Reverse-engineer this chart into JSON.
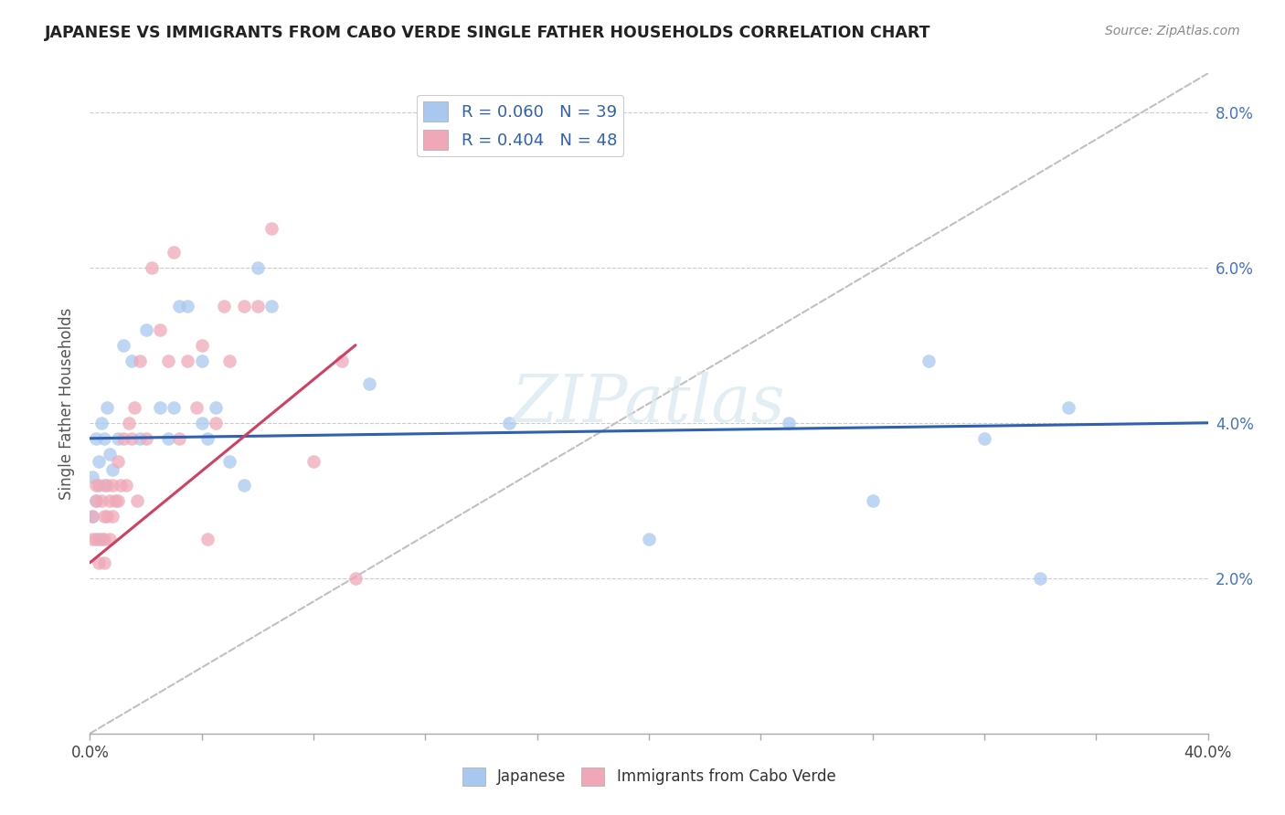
{
  "title": "JAPANESE VS IMMIGRANTS FROM CABO VERDE SINGLE FATHER HOUSEHOLDS CORRELATION CHART",
  "source": "Source: ZipAtlas.com",
  "ylabel": "Single Father Households",
  "xlabel_japanese": "Japanese",
  "xlabel_caboverde": "Immigrants from Cabo Verde",
  "xmin": 0.0,
  "xmax": 0.4,
  "ymin": 0.0,
  "ymax": 0.085,
  "yticks": [
    0.0,
    0.02,
    0.04,
    0.06,
    0.08
  ],
  "ytick_labels_right": [
    "",
    "2.0%",
    "4.0%",
    "6.0%",
    "8.0%"
  ],
  "xtick_labels_bottom": [
    "0.0%",
    "",
    "",
    "",
    "40.0%"
  ],
  "R_japanese": 0.06,
  "N_japanese": 39,
  "R_caboverde": 0.404,
  "N_caboverde": 48,
  "color_japanese": "#A8C8F0",
  "color_caboverde": "#F0A8B8",
  "color_japanese_line": "#3060B0",
  "color_caboverde_line": "#D04060",
  "color_diagonal": "#C0C0C0",
  "japanese_x": [
    0.001,
    0.001,
    0.002,
    0.002,
    0.003,
    0.003,
    0.004,
    0.005,
    0.005,
    0.006,
    0.007,
    0.008,
    0.01,
    0.012,
    0.015,
    0.018,
    0.02,
    0.025,
    0.028,
    0.03,
    0.032,
    0.035,
    0.04,
    0.04,
    0.042,
    0.045,
    0.05,
    0.055,
    0.06,
    0.065,
    0.1,
    0.15,
    0.2,
    0.25,
    0.28,
    0.3,
    0.32,
    0.34,
    0.35
  ],
  "japanese_y": [
    0.033,
    0.028,
    0.03,
    0.038,
    0.025,
    0.035,
    0.04,
    0.038,
    0.032,
    0.042,
    0.036,
    0.034,
    0.038,
    0.05,
    0.048,
    0.038,
    0.052,
    0.042,
    0.038,
    0.042,
    0.055,
    0.055,
    0.04,
    0.048,
    0.038,
    0.042,
    0.035,
    0.032,
    0.06,
    0.055,
    0.045,
    0.04,
    0.025,
    0.04,
    0.03,
    0.048,
    0.038,
    0.02,
    0.042
  ],
  "caboverde_x": [
    0.001,
    0.001,
    0.002,
    0.002,
    0.002,
    0.003,
    0.003,
    0.004,
    0.004,
    0.005,
    0.005,
    0.005,
    0.006,
    0.006,
    0.007,
    0.007,
    0.008,
    0.008,
    0.009,
    0.01,
    0.01,
    0.011,
    0.012,
    0.013,
    0.014,
    0.015,
    0.016,
    0.017,
    0.018,
    0.02,
    0.022,
    0.025,
    0.028,
    0.03,
    0.032,
    0.035,
    0.038,
    0.04,
    0.042,
    0.045,
    0.048,
    0.05,
    0.055,
    0.06,
    0.065,
    0.08,
    0.09,
    0.095
  ],
  "caboverde_y": [
    0.028,
    0.025,
    0.03,
    0.025,
    0.032,
    0.032,
    0.022,
    0.025,
    0.03,
    0.025,
    0.028,
    0.022,
    0.028,
    0.032,
    0.03,
    0.025,
    0.032,
    0.028,
    0.03,
    0.035,
    0.03,
    0.032,
    0.038,
    0.032,
    0.04,
    0.038,
    0.042,
    0.03,
    0.048,
    0.038,
    0.06,
    0.052,
    0.048,
    0.062,
    0.038,
    0.048,
    0.042,
    0.05,
    0.025,
    0.04,
    0.055,
    0.048,
    0.055,
    0.055,
    0.065,
    0.035,
    0.048,
    0.02
  ],
  "jap_line_x0": 0.0,
  "jap_line_x1": 0.4,
  "jap_line_y0": 0.038,
  "jap_line_y1": 0.04,
  "cv_line_x0": 0.0,
  "cv_line_x1": 0.095,
  "cv_line_y0": 0.022,
  "cv_line_y1": 0.05
}
